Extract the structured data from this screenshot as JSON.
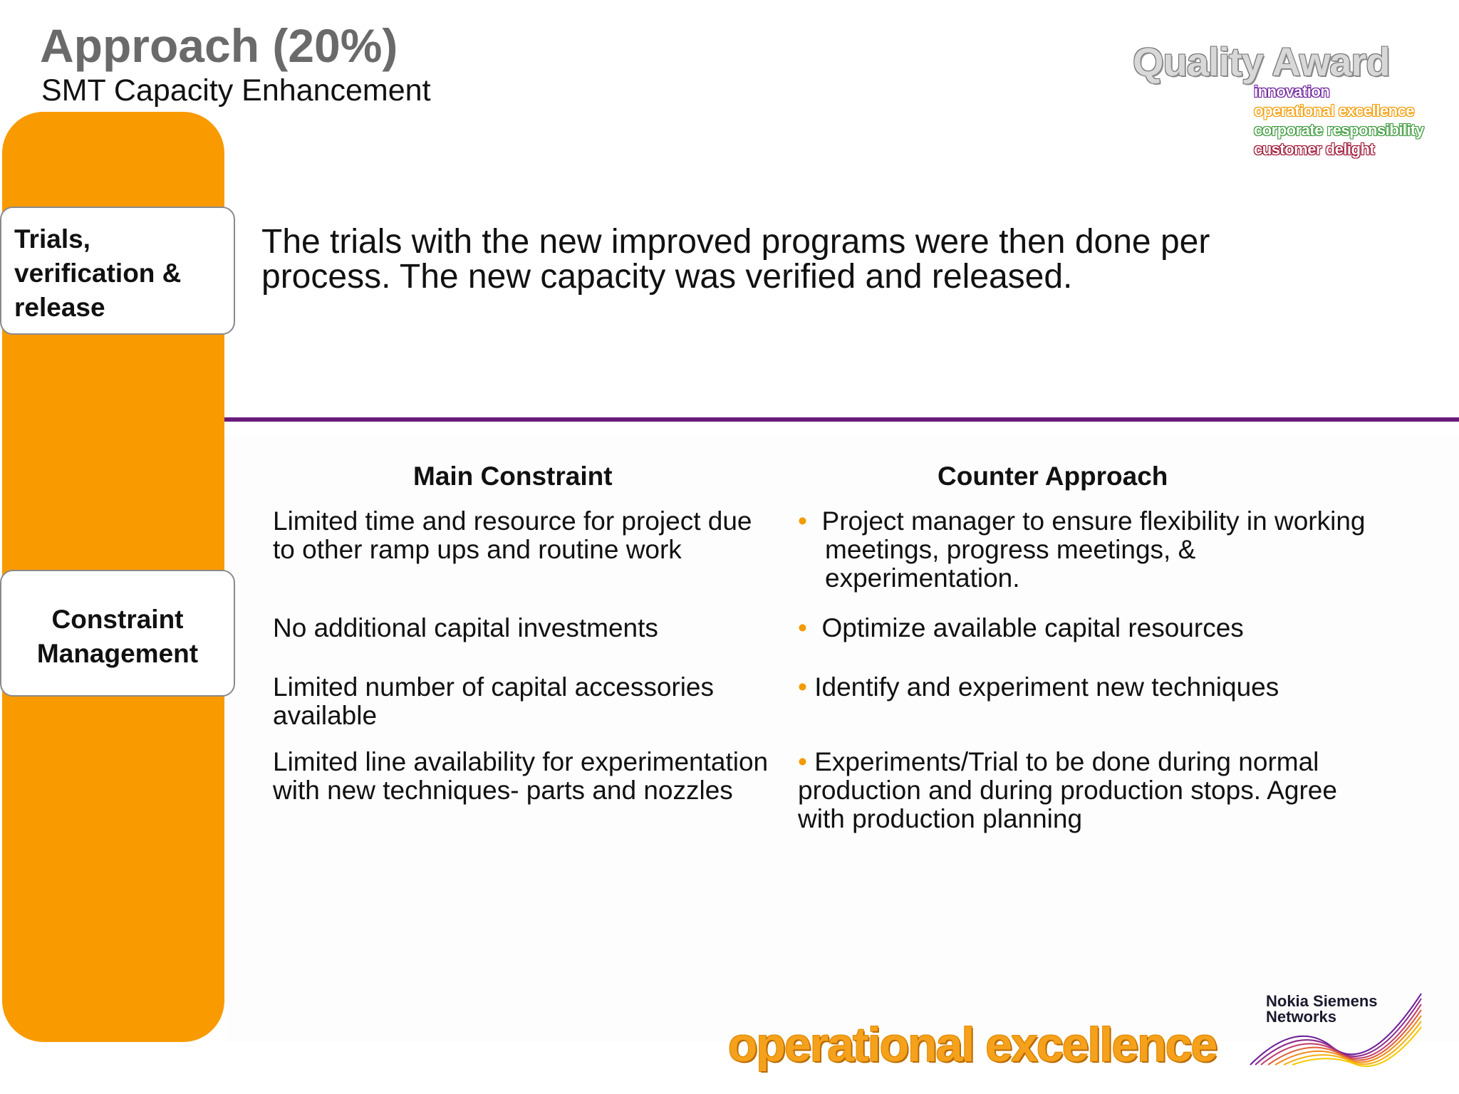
{
  "header": {
    "title": "Approach (20%)",
    "subtitle": "SMT Capacity Enhancement"
  },
  "quality_award": {
    "title": "Quality Award",
    "lines": [
      "innovation",
      "operational excellence",
      "corporate responsibility",
      "customer delight"
    ]
  },
  "sections": {
    "trials_label": "Trials, verification & release",
    "trials_text": "The trials with the new improved programs were then done per process. The new capacity was verified and released.",
    "constraint_label": "Constraint Management"
  },
  "table": {
    "headers": [
      "Main Constraint",
      "Counter Approach"
    ],
    "rows": [
      {
        "constraint": "Limited time and resource for project due to other ramp ups and routine work",
        "approach": "Project manager to ensure flexibility in working meetings, progress meetings, & experimentation."
      },
      {
        "constraint": "No additional capital investments",
        "approach": "Optimize available capital resources"
      },
      {
        "constraint": "Limited number of capital accessories available",
        "approach": "Identify and experiment new techniques"
      },
      {
        "constraint": "Limited line availability for experimentation with new techniques- parts and nozzles",
        "approach": "Experiments/Trial to be done during normal production and during production stops. Agree with production planning"
      }
    ]
  },
  "footer": {
    "tagline": "operational excellence",
    "company_line1": "Nokia Siemens",
    "company_line2": "Networks"
  },
  "colors": {
    "accent_orange": "#f99a00",
    "divider_purple": "#6a1b7a",
    "title_gray": "#6a6a6a"
  }
}
